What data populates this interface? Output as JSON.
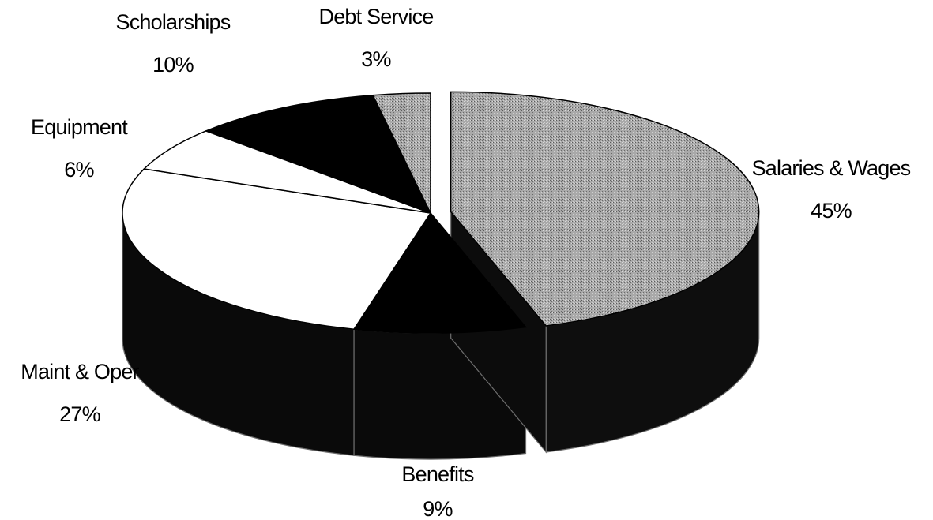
{
  "chart_data": {
    "type": "pie",
    "style": "3d-exploded",
    "title": "",
    "slices": [
      {
        "label": "Salaries & Wages",
        "value": 45,
        "pct_text": "45%",
        "fill": "pattern-gray"
      },
      {
        "label": "Benefits",
        "value": 9,
        "pct_text": "9%",
        "fill": "#000000"
      },
      {
        "label": "Maint & Oper",
        "value": 27,
        "pct_text": "27%",
        "fill": "#ffffff"
      },
      {
        "label": "Equipment",
        "value": 6,
        "pct_text": "6%",
        "fill": "#ffffff"
      },
      {
        "label": "Scholarships",
        "value": 10,
        "pct_text": "10%",
        "fill": "#000000"
      },
      {
        "label": "Debt Service",
        "value": 3,
        "pct_text": "3%",
        "fill": "pattern-gray"
      }
    ],
    "legend": "none"
  }
}
